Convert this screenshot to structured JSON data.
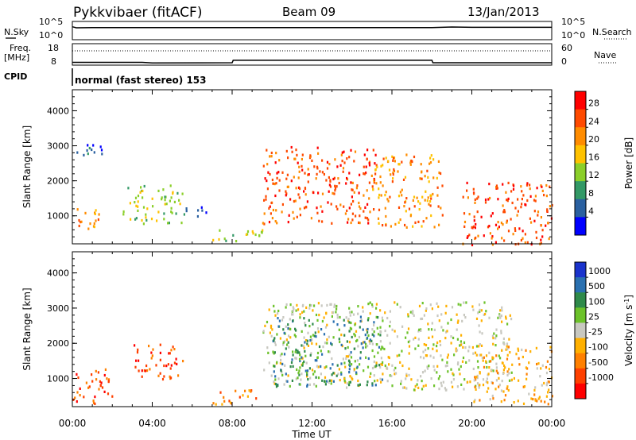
{
  "header": {
    "title": "Pykkvibaer (fitACF)",
    "beam": "Beam 09",
    "date": "13/Jan/2013"
  },
  "status": {
    "nsky_label": "N.Sky",
    "nsky_ticks": [
      "10^5",
      "10^0"
    ],
    "nsearch_label": "N.Search",
    "nsearch_ticks": [
      "10^5",
      "10^0"
    ],
    "freq_label": "Freq.",
    "freq_unit": "[MHz]",
    "freq_ticks": [
      "18",
      "8"
    ],
    "nave_label": "Nave",
    "nave_ticks": [
      "60",
      "0"
    ],
    "cpid_label": "CPID",
    "cpid_text": "normal (fast stereo) 153"
  },
  "chart_data": [
    {
      "type": "line",
      "title": "",
      "series": [
        {
          "name": "N.Sky",
          "x": [
            0,
            0.2,
            1,
            4,
            8,
            12,
            16,
            18,
            19,
            20,
            24
          ],
          "values": [
            4.8,
            4.4,
            4.5,
            4.5,
            4.5,
            4.5,
            4.5,
            4.5,
            4.7,
            4.6,
            4.6
          ]
        },
        {
          "name": "Freq.",
          "x": [
            0,
            3.5,
            4,
            8,
            8.05,
            18,
            18.05,
            24
          ],
          "values": [
            9.5,
            9.5,
            9.0,
            9.2,
            11.0,
            11.0,
            9.2,
            9.2
          ]
        }
      ],
      "xlim": [
        0,
        24
      ]
    },
    {
      "type": "heatmap",
      "title": "",
      "ylabel": "Slant Range [km]",
      "xlabel": "",
      "xlim": [
        0,
        24
      ],
      "ylim": [
        200,
        4600
      ],
      "yticks": [
        "1000",
        "2000",
        "3000",
        "4000"
      ],
      "colorbar": {
        "label": "Power [dB]",
        "ticks": [
          "28",
          "24",
          "20",
          "16",
          "12",
          "8",
          "4"
        ],
        "colors": [
          "#ff0000",
          "#ff4a00",
          "#ff8c00",
          "#ffc200",
          "#8bcf2a",
          "#339966",
          "#2a60a0",
          "#0000ff"
        ]
      },
      "features": [
        {
          "x": [
            0,
            1.3
          ],
          "range_km": [
            600,
            1300
          ],
          "level": "medium-high"
        },
        {
          "x": [
            0.2,
            1.5
          ],
          "range_km": [
            2700,
            3200
          ],
          "level": "low"
        },
        {
          "x": [
            2.5,
            5.5
          ],
          "range_km": [
            800,
            1900
          ],
          "level": "medium"
        },
        {
          "x": [
            5.5,
            7.0
          ],
          "range_km": [
            1000,
            1300
          ],
          "level": "low"
        },
        {
          "x": [
            7.0,
            9.5
          ],
          "range_km": [
            300,
            700
          ],
          "level": "medium"
        },
        {
          "x": [
            9.5,
            15.2
          ],
          "range_km": [
            800,
            3000
          ],
          "level": "high"
        },
        {
          "x": [
            15.0,
            18.5
          ],
          "range_km": [
            700,
            2800
          ],
          "level": "medium-high"
        },
        {
          "x": [
            19.5,
            24
          ],
          "range_km": [
            200,
            2000
          ],
          "level": "high"
        }
      ]
    },
    {
      "type": "heatmap",
      "title": "",
      "ylabel": "Slant Range [km]",
      "xlabel": "Time UT",
      "xlim": [
        0,
        24
      ],
      "ylim": [
        200,
        4600
      ],
      "xticks": [
        "00:00",
        "04:00",
        "08:00",
        "12:00",
        "16:00",
        "20:00",
        "00:00"
      ],
      "yticks": [
        "1000",
        "2000",
        "3000",
        "4000"
      ],
      "colorbar": {
        "label": "Velocity [m s",
        "label_sup": "-1",
        "label_close": "]",
        "ticks": [
          "1000",
          "500",
          "100",
          "25",
          "-25",
          "-100",
          "-500",
          "-1000"
        ],
        "colors": [
          "#1a33cc",
          "#2a70b0",
          "#2f8a4a",
          "#6cc22a",
          "#c8c8c0",
          "#ffb000",
          "#ff8000",
          "#ff4000",
          "#ff0000"
        ]
      },
      "features": [
        {
          "x": [
            0,
            2.0
          ],
          "range_km": [
            300,
            1300
          ],
          "velocity": "-500 to -1000"
        },
        {
          "x": [
            3.0,
            5.5
          ],
          "range_km": [
            1000,
            2000
          ],
          "velocity": "-500 to -1000"
        },
        {
          "x": [
            7.0,
            9.5
          ],
          "range_km": [
            300,
            700
          ],
          "velocity": "-100 to -500"
        },
        {
          "x": [
            9.5,
            22.0
          ],
          "range_km": [
            700,
            3200
          ],
          "velocity": "-25 to 25"
        },
        {
          "x": [
            10.0,
            15.5
          ],
          "range_km": [
            800,
            2800
          ],
          "velocity": "100 to 1000"
        },
        {
          "x": [
            20.0,
            24
          ],
          "range_km": [
            300,
            2000
          ],
          "velocity": "-500 to 100"
        }
      ]
    }
  ]
}
